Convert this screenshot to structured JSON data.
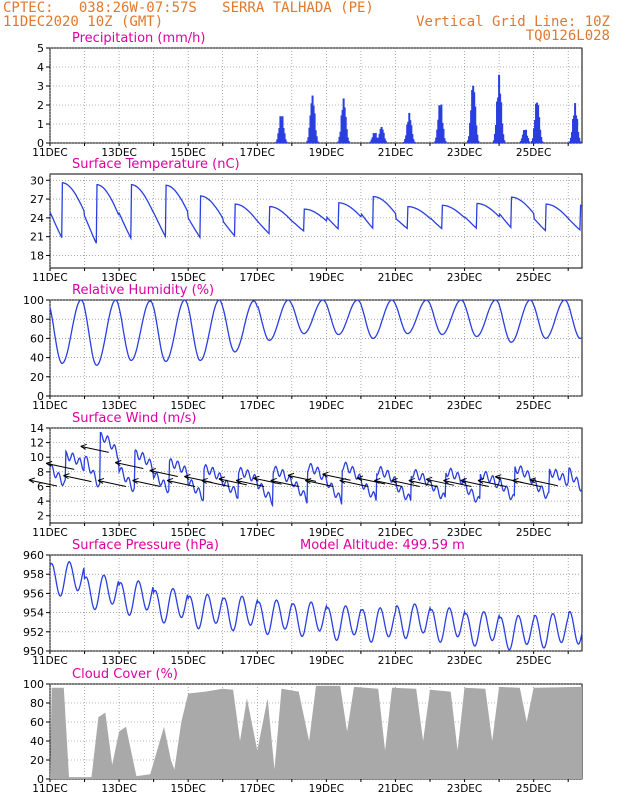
{
  "header": {
    "line1_left": "CPTEC:   038:26W-07:57S   SERRA TALHADA (PE)",
    "line2_left": "11DEC2020 10Z (GMT)",
    "line2_right": "Vertical Grid Line: 10Z",
    "line3_right": "TQ0126L028"
  },
  "colors": {
    "header": "#e0782d",
    "panel_title": "#e000a0",
    "series_line": "#2a3fe0",
    "precip_bar": "#2a3fe0",
    "cloud_fill": "#a9a9a9",
    "wind_arrow": "#000000"
  },
  "chart_data": [
    {
      "type": "bar",
      "title": "Precipitation (mm/h)",
      "ylim": [
        0,
        5
      ],
      "y_ticks": [
        "0",
        "1",
        "2",
        "3",
        "4",
        "5"
      ],
      "x_ticks": [
        "11DEC",
        "13DEC",
        "15DEC",
        "17DEC",
        "19DEC",
        "21DEC",
        "23DEC",
        "25DEC"
      ],
      "x_tick_days": [
        0,
        2,
        4,
        6,
        8,
        10,
        12,
        14
      ],
      "x_range_days": [
        0,
        15.4
      ],
      "grid": "dotted",
      "bursts": [
        {
          "day": 6.7,
          "peak": 1.6
        },
        {
          "day": 7.6,
          "peak": 2.6
        },
        {
          "day": 8.5,
          "peak": 2.4
        },
        {
          "day": 9.4,
          "peak": 0.6
        },
        {
          "day": 9.6,
          "peak": 0.9
        },
        {
          "day": 10.4,
          "peak": 1.6
        },
        {
          "day": 11.3,
          "peak": 2.3
        },
        {
          "day": 12.25,
          "peak": 3.3
        },
        {
          "day": 13.0,
          "peak": 3.6
        },
        {
          "day": 13.75,
          "peak": 0.8
        },
        {
          "day": 14.1,
          "peak": 2.4
        },
        {
          "day": 15.2,
          "peak": 2.1
        }
      ]
    },
    {
      "type": "line",
      "title": "Surface Temperature (nC)",
      "ylim": [
        16,
        31
      ],
      "y_ticks": [
        "18",
        "21",
        "24",
        "27",
        "30"
      ],
      "y_tick_values": [
        18,
        21,
        24,
        27,
        30
      ],
      "x_ticks": [
        "11DEC",
        "13DEC",
        "15DEC",
        "17DEC",
        "19DEC",
        "21DEC",
        "23DEC",
        "25DEC"
      ],
      "daily_max": [
        29.6,
        29.3,
        29.3,
        29.2,
        27.5,
        26.2,
        25.8,
        25.4,
        26.4,
        27.4,
        25.8,
        26.0,
        26.3,
        27.3,
        26.2,
        26.0
      ],
      "daily_min": [
        17.8,
        16.7,
        17.8,
        18.2,
        18.6,
        19.4,
        20.0,
        20.7,
        20.8,
        20.6,
        21.1,
        21.0,
        21.0,
        20.8,
        20.5,
        20.7
      ]
    },
    {
      "type": "line",
      "title": "Relative Humidity (%)",
      "ylim": [
        0,
        100
      ],
      "y_ticks": [
        "0",
        "20",
        "40",
        "60",
        "80",
        "100"
      ],
      "y_tick_values": [
        0,
        20,
        40,
        60,
        80,
        100
      ],
      "x_ticks": [
        "11DEC",
        "13DEC",
        "15DEC",
        "17DEC",
        "19DEC",
        "21DEC",
        "23DEC",
        "25DEC"
      ],
      "daily_max": [
        100,
        100,
        99,
        100,
        100,
        99,
        100,
        100,
        100,
        100,
        100,
        100,
        100,
        100,
        100,
        100
      ],
      "daily_min": [
        34,
        32,
        37,
        36,
        37,
        46,
        58,
        65,
        64,
        60,
        65,
        64,
        62,
        56,
        60,
        60
      ]
    },
    {
      "type": "line",
      "title": "Surface Wind (m/s)",
      "ylim": [
        1,
        14
      ],
      "y_ticks": [
        "2",
        "4",
        "6",
        "8",
        "10",
        "12",
        "14"
      ],
      "y_tick_values": [
        2,
        4,
        6,
        8,
        10,
        12,
        14
      ],
      "x_ticks": [
        "11DEC",
        "13DEC",
        "15DEC",
        "17DEC",
        "19DEC",
        "21DEC",
        "23DEC",
        "25DEC"
      ],
      "daily_max": [
        10.2,
        12.8,
        10.4,
        9.2,
        8.4,
        8.0,
        8.2,
        8.6,
        8.8,
        8.2,
        7.8,
        8.0,
        7.6,
        8.4,
        7.9,
        10.0
      ],
      "daily_min": [
        5.2,
        4.0,
        4.2,
        4.5,
        3.4,
        4.0,
        2.8,
        3.0,
        2.6,
        3.2,
        3.0,
        3.2,
        2.8,
        3.0,
        3.6,
        4.2
      ],
      "arrows_note": "direction arrows plotted along the series"
    },
    {
      "type": "line",
      "title": "Surface Pressure (hPa)",
      "annotation": "Model Altitude: 499.59  m",
      "ylim": [
        950,
        960
      ],
      "y_ticks": [
        "950",
        "952",
        "954",
        "956",
        "958",
        "960"
      ],
      "y_tick_values": [
        950,
        952,
        954,
        956,
        958,
        960
      ],
      "x_ticks": [
        "11DEC",
        "13DEC",
        "15DEC",
        "17DEC",
        "19DEC",
        "21DEC",
        "23DEC",
        "25DEC"
      ],
      "daily_mean": [
        957.6,
        956.2,
        955.6,
        954.8,
        954.2,
        954.0,
        953.6,
        953.4,
        953.0,
        952.8,
        953.2,
        952.8,
        952.4,
        952.0,
        952.2,
        952.6
      ]
    },
    {
      "type": "area",
      "title": "Cloud Cover (%)",
      "ylim": [
        0,
        100
      ],
      "y_ticks": [
        "0",
        "20",
        "40",
        "60",
        "80",
        "100"
      ],
      "y_tick_values": [
        0,
        20,
        40,
        60,
        80,
        100
      ],
      "x_ticks": [
        "11DEC",
        "13DEC",
        "15DEC",
        "17DEC",
        "19DEC",
        "21DEC",
        "23DEC",
        "25DEC"
      ],
      "envelope": [
        {
          "day": 0.0,
          "cover": 0
        },
        {
          "day": 0.05,
          "cover": 96
        },
        {
          "day": 0.4,
          "cover": 96
        },
        {
          "day": 0.55,
          "cover": 2
        },
        {
          "day": 1.2,
          "cover": 2
        },
        {
          "day": 1.4,
          "cover": 65
        },
        {
          "day": 1.6,
          "cover": 70
        },
        {
          "day": 1.8,
          "cover": 15
        },
        {
          "day": 2.0,
          "cover": 50
        },
        {
          "day": 2.2,
          "cover": 55
        },
        {
          "day": 2.5,
          "cover": 3
        },
        {
          "day": 2.9,
          "cover": 5
        },
        {
          "day": 3.1,
          "cover": 30
        },
        {
          "day": 3.3,
          "cover": 55
        },
        {
          "day": 3.5,
          "cover": 20
        },
        {
          "day": 3.6,
          "cover": 10
        },
        {
          "day": 3.8,
          "cover": 60
        },
        {
          "day": 4.0,
          "cover": 90
        },
        {
          "day": 4.5,
          "cover": 92
        },
        {
          "day": 5.0,
          "cover": 95
        },
        {
          "day": 5.3,
          "cover": 94
        },
        {
          "day": 5.5,
          "cover": 40
        },
        {
          "day": 5.7,
          "cover": 85
        },
        {
          "day": 6.0,
          "cover": 30
        },
        {
          "day": 6.3,
          "cover": 85
        },
        {
          "day": 6.5,
          "cover": 10
        },
        {
          "day": 6.7,
          "cover": 95
        },
        {
          "day": 7.2,
          "cover": 92
        },
        {
          "day": 7.5,
          "cover": 40
        },
        {
          "day": 7.7,
          "cover": 98
        },
        {
          "day": 8.4,
          "cover": 98
        },
        {
          "day": 8.6,
          "cover": 50
        },
        {
          "day": 8.8,
          "cover": 97
        },
        {
          "day": 9.5,
          "cover": 95
        },
        {
          "day": 9.7,
          "cover": 30
        },
        {
          "day": 9.9,
          "cover": 96
        },
        {
          "day": 10.6,
          "cover": 95
        },
        {
          "day": 10.8,
          "cover": 40
        },
        {
          "day": 11.0,
          "cover": 94
        },
        {
          "day": 11.6,
          "cover": 92
        },
        {
          "day": 11.8,
          "cover": 30
        },
        {
          "day": 12.0,
          "cover": 96
        },
        {
          "day": 12.6,
          "cover": 95
        },
        {
          "day": 12.8,
          "cover": 40
        },
        {
          "day": 13.0,
          "cover": 97
        },
        {
          "day": 13.6,
          "cover": 96
        },
        {
          "day": 13.8,
          "cover": 60
        },
        {
          "day": 14.0,
          "cover": 96
        },
        {
          "day": 15.4,
          "cover": 97
        }
      ]
    }
  ]
}
